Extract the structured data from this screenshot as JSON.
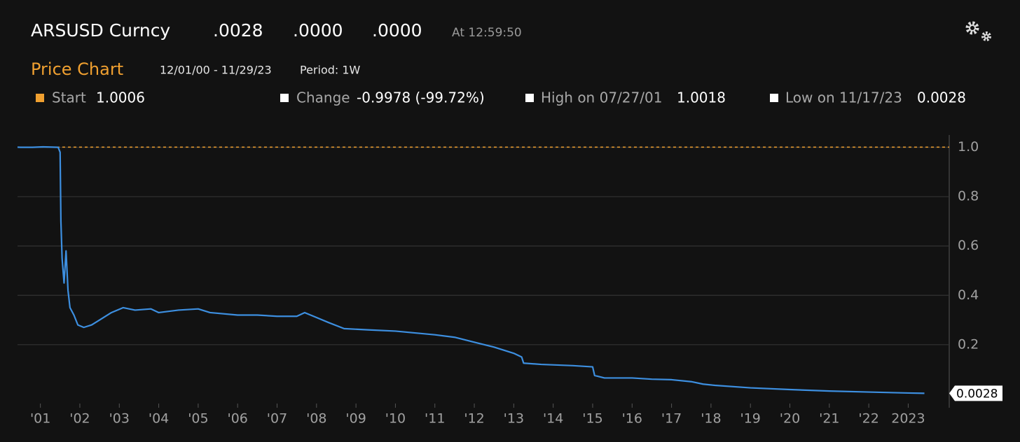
{
  "header": {
    "ticker": "ARSUSD Curncy",
    "last": ".0028",
    "change": ".0000",
    "pct_change": ".0000",
    "time": "At 12:59:50",
    "stats": [
      {
        "label": "Start",
        "value": "1.0006"
      },
      {
        "label": "Change",
        "value": "-0.9978 (-99.72%)"
      },
      {
        "label": "High on 07/27/01",
        "value": "1.0018"
      },
      {
        "label": "Low on 11/17/23",
        "value": "0.0028"
      }
    ]
  },
  "chart_data": {
    "type": "line",
    "title": "Price Chart",
    "subtitle": "12/01/00 - 11/29/23",
    "period": "Period: 1W",
    "color": "#3d8fe0",
    "reference_color": "#f0a030",
    "grid": true,
    "x": [
      2000.92,
      2001.0,
      2001.3,
      2001.57,
      2001.95,
      2002.0,
      2002.02,
      2002.05,
      2002.1,
      2002.15,
      2002.2,
      2002.25,
      2002.35,
      2002.45,
      2002.6,
      2002.8,
      2003.0,
      2003.3,
      2003.6,
      2003.9,
      2004.3,
      2004.5,
      2005.0,
      2005.5,
      2005.8,
      2006.5,
      2007.0,
      2007.5,
      2008.0,
      2008.2,
      2008.5,
      2008.8,
      2009.2,
      2009.8,
      2010.5,
      2011.5,
      2012.0,
      2012.5,
      2013.0,
      2013.5,
      2013.7,
      2013.75,
      2014.2,
      2015.0,
      2015.5,
      2015.55,
      2015.8,
      2016.5,
      2017.0,
      2017.5,
      2018.0,
      2018.3,
      2018.6,
      2019.5,
      2020.5,
      2021.5,
      2022.5,
      2023.5,
      2023.91
    ],
    "values": [
      1.0006,
      1.0,
      1.0,
      1.0018,
      1.0,
      0.98,
      0.7,
      0.55,
      0.45,
      0.58,
      0.42,
      0.35,
      0.32,
      0.28,
      0.27,
      0.28,
      0.3,
      0.33,
      0.35,
      0.34,
      0.345,
      0.33,
      0.34,
      0.345,
      0.33,
      0.32,
      0.32,
      0.315,
      0.315,
      0.33,
      0.31,
      0.29,
      0.265,
      0.26,
      0.255,
      0.24,
      0.23,
      0.21,
      0.19,
      0.165,
      0.15,
      0.125,
      0.12,
      0.115,
      0.11,
      0.075,
      0.065,
      0.065,
      0.06,
      0.058,
      0.05,
      0.04,
      0.035,
      0.025,
      0.018,
      0.012,
      0.008,
      0.004,
      0.0028
    ],
    "xlim": [
      2000.92,
      2024.54
    ],
    "ylim": [
      -0.05,
      1.05
    ],
    "xticks": [
      {
        "value": 2001.5,
        "label": "'01"
      },
      {
        "value": 2002.5,
        "label": "'02"
      },
      {
        "value": 2003.5,
        "label": "'03"
      },
      {
        "value": 2004.5,
        "label": "'04"
      },
      {
        "value": 2005.5,
        "label": "'05"
      },
      {
        "value": 2006.5,
        "label": "'06"
      },
      {
        "value": 2007.5,
        "label": "'07"
      },
      {
        "value": 2008.5,
        "label": "'08"
      },
      {
        "value": 2009.5,
        "label": "'09"
      },
      {
        "value": 2010.5,
        "label": "'10"
      },
      {
        "value": 2011.5,
        "label": "'11"
      },
      {
        "value": 2012.5,
        "label": "'12"
      },
      {
        "value": 2013.5,
        "label": "'13"
      },
      {
        "value": 2014.5,
        "label": "'14"
      },
      {
        "value": 2015.5,
        "label": "'15"
      },
      {
        "value": 2016.5,
        "label": "'16"
      },
      {
        "value": 2017.5,
        "label": "'17"
      },
      {
        "value": 2018.5,
        "label": "'18"
      },
      {
        "value": 2019.5,
        "label": "'19"
      },
      {
        "value": 2020.5,
        "label": "'20"
      },
      {
        "value": 2021.5,
        "label": "'21"
      },
      {
        "value": 2022.5,
        "label": "'22"
      },
      {
        "value": 2023.5,
        "label": "2023"
      }
    ],
    "yticks": [
      {
        "value": 1,
        "label": "1.0"
      },
      0.8,
      0.6,
      0.4,
      0.2
    ]
  }
}
